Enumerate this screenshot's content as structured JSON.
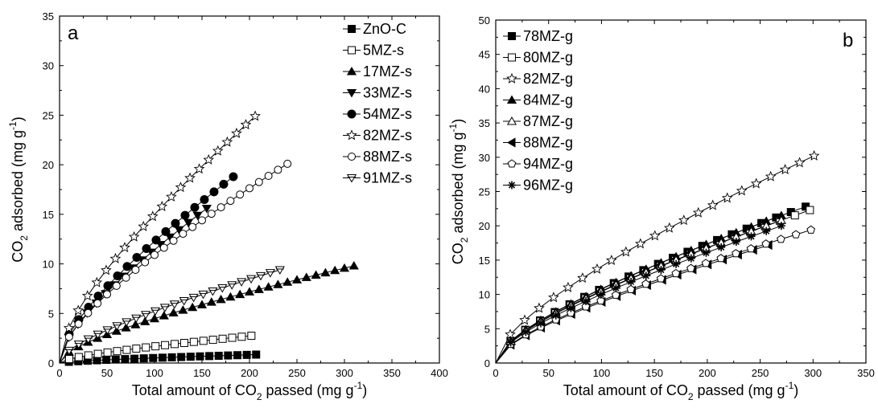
{
  "chart_data": [
    {
      "type": "line",
      "panel": "a",
      "xlabel_main": "Total amount of CO",
      "xlabel_sub": "2",
      "xlabel_tail": " passed (mg g",
      "xlabel_sup": "-1",
      "xlabel_end": ")",
      "ylabel_main": "CO",
      "ylabel_sub": "2",
      "ylabel_tail": " adsorbed (mg g",
      "ylabel_sup": "-1",
      "ylabel_end": ")",
      "xlim": [
        0,
        400
      ],
      "ylim": [
        0,
        35
      ],
      "xticks": [
        "0",
        "50",
        "100",
        "150",
        "200",
        "250",
        "300",
        "350",
        "400"
      ],
      "yticks": [
        "0",
        "5",
        "10",
        "15",
        "20",
        "25",
        "30",
        "35"
      ],
      "grid": false,
      "legend_position": "top-right",
      "series": [
        {
          "name": "ZnO-C",
          "marker": "square-filled",
          "x": [
            0,
            207
          ],
          "y": [
            0,
            0.85
          ]
        },
        {
          "name": "5MZ-s",
          "marker": "square-open",
          "x": [
            0,
            202
          ],
          "y": [
            0,
            2.75
          ]
        },
        {
          "name": "17MZ-s",
          "marker": "triangle-up-filled",
          "x": [
            0,
            310
          ],
          "y": [
            0,
            9.8
          ]
        },
        {
          "name": "33MZ-s",
          "marker": "triangle-down-filled",
          "x": [
            0,
            155
          ],
          "y": [
            0,
            15.6
          ]
        },
        {
          "name": "54MZ-s",
          "marker": "circle-filled",
          "x": [
            0,
            183
          ],
          "y": [
            0,
            18.8
          ]
        },
        {
          "name": "82MZ-s",
          "marker": "star-open",
          "x": [
            0,
            206
          ],
          "y": [
            0,
            24.9
          ]
        },
        {
          "name": "88MZ-s",
          "marker": "circle-open",
          "x": [
            0,
            240
          ],
          "y": [
            0,
            20.1
          ]
        },
        {
          "name": "91MZ-s",
          "marker": "triangle-down-open-bar",
          "x": [
            0,
            232
          ],
          "y": [
            0,
            9.4
          ]
        }
      ]
    },
    {
      "type": "line",
      "panel": "b",
      "xlabel_main": "Total amount of CO",
      "xlabel_sub": "2",
      "xlabel_tail": " passed (mg g",
      "xlabel_sup": "-1",
      "xlabel_end": ")",
      "ylabel_main": "CO",
      "ylabel_sub": "2",
      "ylabel_tail": " adsorbed (mg g",
      "ylabel_sup": "-1",
      "ylabel_end": ")",
      "xlim": [
        0,
        350
      ],
      "ylim": [
        0,
        50
      ],
      "xticks": [
        "0",
        "50",
        "100",
        "150",
        "200",
        "250",
        "300",
        "350"
      ],
      "yticks": [
        "0",
        "5",
        "10",
        "15",
        "20",
        "25",
        "30",
        "35",
        "40",
        "45",
        "50"
      ],
      "grid": false,
      "legend_position": "top-left",
      "series": [
        {
          "name": "78MZ-g",
          "marker": "square-filled",
          "x": [
            0,
            293
          ],
          "y": [
            0,
            22.8
          ]
        },
        {
          "name": "80MZ-g",
          "marker": "square-open",
          "x": [
            0,
            297
          ],
          "y": [
            0,
            22.3
          ]
        },
        {
          "name": "82MZ-g",
          "marker": "star-open",
          "x": [
            0,
            301
          ],
          "y": [
            0,
            30.2
          ]
        },
        {
          "name": "84MZ-g",
          "marker": "triangle-up-filled",
          "x": [
            0,
            270
          ],
          "y": [
            0,
            21.5
          ]
        },
        {
          "name": "87MZ-g",
          "marker": "triangle-up-open",
          "x": [
            0,
            270
          ],
          "y": [
            0,
            20.8
          ]
        },
        {
          "name": "88MZ-g",
          "marker": "triangle-left-filled",
          "x": [
            0,
            258
          ],
          "y": [
            0,
            17.2
          ]
        },
        {
          "name": "94MZ-g",
          "marker": "pentagon-open",
          "x": [
            0,
            298
          ],
          "y": [
            0,
            19.4
          ]
        },
        {
          "name": "96MZ-g",
          "marker": "asterisk",
          "x": [
            0,
            270
          ],
          "y": [
            0,
            20.0
          ]
        }
      ]
    }
  ]
}
